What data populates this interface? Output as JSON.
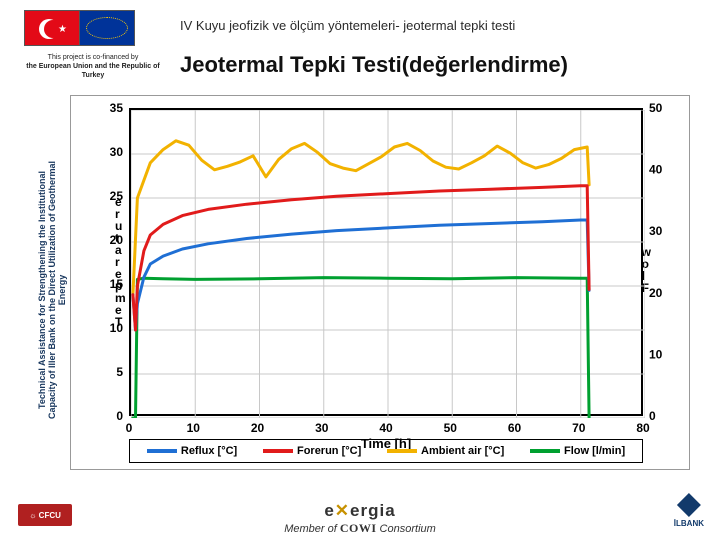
{
  "header": {
    "breadcrumb": "IV Kuyu jeofizik ve ölçüm yöntemeleri- jeotermal tepki testi",
    "title": "Jeotermal Tepki Testi(değerlendirme)",
    "cofinance_l1": "This project is co-financed by",
    "cofinance_l2": "the European Union and the Republic of Turkey"
  },
  "sidebar": {
    "vertical_label": "Technical Assistance for Strengthening the Institutional Capacity of Iller Bank on the Direct Utilization of Geothermal Energy"
  },
  "footer": {
    "cfcu": "☼ CFCU",
    "exergia_logo_pre": "e",
    "exergia_logo_x": "✕",
    "exergia_logo_post": "ergia",
    "member_pre": "Member of ",
    "member_brand": "COWI",
    "member_post": " Consortium",
    "ilbank": "İLBANK"
  },
  "chart": {
    "type": "line",
    "background_color": "#ffffff",
    "border_color": "#000000",
    "grid_color": "#c8c8c8",
    "xlabel": "Time [h]",
    "ylabel_left_chars": [
      "e",
      "r",
      "u",
      "t",
      "a",
      "r",
      "e",
      "p",
      "m",
      "e",
      "T"
    ],
    "ylabel_right_chars": [
      "w",
      "o",
      "l",
      "F"
    ],
    "label_fontsize": 13,
    "tick_fontsize": 12,
    "line_width": 3,
    "x": {
      "min": 0,
      "max": 80,
      "ticks": [
        0,
        10,
        20,
        30,
        40,
        50,
        60,
        70,
        80
      ]
    },
    "y_left": {
      "min": 0,
      "max": 35,
      "ticks": [
        0,
        5,
        10,
        15,
        20,
        25,
        30,
        35
      ]
    },
    "y_right": {
      "min": 0,
      "max": 50,
      "ticks": [
        0,
        10,
        20,
        30,
        40,
        50
      ]
    },
    "legend": {
      "position": "bottom",
      "items": [
        {
          "label": "Reflux [°C]",
          "color": "#1f6fd4"
        },
        {
          "label": "Forerun [°C]",
          "color": "#e11b1b"
        },
        {
          "label": "Ambient air [°C]",
          "color": "#f2b200"
        },
        {
          "label": "Flow [l/min]",
          "color": "#00a030"
        }
      ]
    },
    "series": {
      "reflux": {
        "axis": "left",
        "color": "#1f6fd4",
        "x": [
          0.3,
          0.7,
          1,
          2,
          3,
          5,
          8,
          12,
          18,
          25,
          32,
          40,
          48,
          56,
          64,
          70,
          71,
          71.3
        ],
        "y": [
          14,
          10,
          13,
          16,
          17.5,
          18.4,
          19.2,
          19.8,
          20.4,
          20.9,
          21.3,
          21.6,
          21.9,
          22.1,
          22.3,
          22.5,
          22.5,
          14.5
        ]
      },
      "forerun": {
        "axis": "left",
        "color": "#e11b1b",
        "x": [
          0.3,
          0.7,
          1,
          2,
          3,
          5,
          8,
          12,
          18,
          25,
          32,
          40,
          48,
          56,
          64,
          70,
          71,
          71.3
        ],
        "y": [
          14,
          10,
          15,
          19,
          20.8,
          22,
          23,
          23.7,
          24.3,
          24.8,
          25.2,
          25.5,
          25.8,
          26,
          26.2,
          26.4,
          26.4,
          14.6
        ]
      },
      "ambient": {
        "axis": "left",
        "color": "#f2b200",
        "x": [
          0.3,
          1,
          3,
          5,
          7,
          9,
          11,
          13,
          15,
          17,
          19,
          21,
          23,
          25,
          27,
          29,
          31,
          33,
          35,
          37,
          39,
          41,
          43,
          45,
          47,
          49,
          51,
          53,
          55,
          57,
          59,
          61,
          63,
          65,
          67,
          69,
          71,
          71.3
        ],
        "y": [
          14,
          25,
          29,
          30.5,
          31.5,
          31,
          29.3,
          28.2,
          28.6,
          29.1,
          29.8,
          27.4,
          29.4,
          30.6,
          31.2,
          30.2,
          28.9,
          28.4,
          28.1,
          28.9,
          29.7,
          30.8,
          31.2,
          30.4,
          29.2,
          28.5,
          28.3,
          29.0,
          29.8,
          30.9,
          30.1,
          29.0,
          28.4,
          28.8,
          29.5,
          30.5,
          30.8,
          26.5
        ]
      },
      "flow": {
        "axis": "right",
        "color": "#00a030",
        "x": [
          0.3,
          0.7,
          1,
          2,
          5,
          10,
          20,
          30,
          40,
          50,
          60,
          70,
          71,
          71.3
        ],
        "y": [
          0,
          0,
          22.5,
          22.7,
          22.6,
          22.5,
          22.6,
          22.8,
          22.7,
          22.6,
          22.8,
          22.7,
          22.7,
          0
        ]
      }
    }
  }
}
